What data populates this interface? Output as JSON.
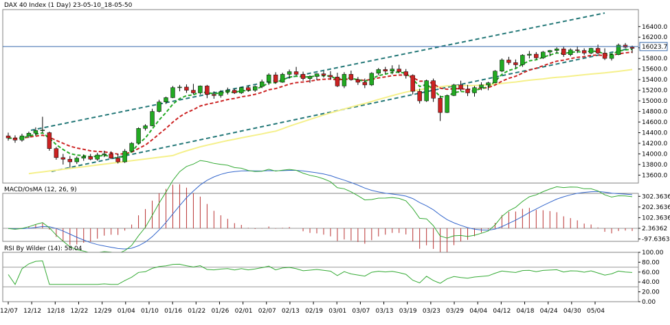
{
  "colors": {
    "bull": "#22aa22",
    "bear": "#cc2222",
    "wick": "#000000",
    "ema_fast": "#22aa22",
    "ema_mid": "#cc2222",
    "sma_slow": "#f5f08a",
    "channel": "#227777",
    "hline": "#3366aa",
    "macd_main": "#33aa33",
    "macd_signal": "#3366cc",
    "osma": "#b83030",
    "rsi": "#33aa33",
    "border": "#808080",
    "gridlevel": "#999999"
  },
  "price_pane": {
    "title": "DAX 40 Index (1 Day) 23-05-10_18-05-50",
    "ylim": [
      13450,
      16720
    ],
    "yticks": [
      "16400.0",
      "16200.0",
      "16000.0",
      "15800.0",
      "15600.0",
      "15400.0",
      "15200.0",
      "15000.0",
      "14800.0",
      "14600.0",
      "14400.0",
      "14200.0",
      "14000.0",
      "13800.0",
      "13600.0"
    ],
    "hline_value": 16023.7,
    "hline_label": "16023.7"
  },
  "macd_pane": {
    "title": "MACD/OsMA (12, 26, 9)",
    "ylim": [
      -120,
      330
    ],
    "yticks": [
      "302.36362",
      "202.36362",
      "102.36362",
      "2.36362",
      "-97.63638"
    ]
  },
  "rsi_pane": {
    "title": "RSI By Wilder (14): 58.04",
    "ylim": [
      0,
      100
    ],
    "yticks": [
      "100.00",
      "80.00",
      "60.00",
      "40.00",
      "20.00",
      "0.00"
    ],
    "levels": [
      70,
      30
    ]
  },
  "x_labels": [
    "12/07",
    "12/12",
    "12/18",
    "12/22",
    "12/29",
    "01/04",
    "01/10",
    "01/16",
    "01/22",
    "01/26",
    "02/01",
    "02/07",
    "02/13",
    "02/19",
    "03/01",
    "03/07",
    "03/13",
    "03/19",
    "03/23",
    "03/29",
    "04/04",
    "04/12",
    "04/18",
    "04/24",
    "04/30",
    "05/04"
  ],
  "chart_data": {
    "type": "candlestick",
    "title": "DAX 40 Index (1 Day) 23-05-10_18-05-50",
    "ohlc": [
      [
        14340,
        14400,
        14250,
        14300
      ],
      [
        14300,
        14350,
        14210,
        14260
      ],
      [
        14260,
        14380,
        14230,
        14340
      ],
      [
        14340,
        14420,
        14300,
        14390
      ],
      [
        14390,
        14500,
        14340,
        14440
      ],
      [
        14440,
        14700,
        14400,
        14450
      ],
      [
        14400,
        14420,
        14060,
        14100
      ],
      [
        14100,
        14130,
        13890,
        13930
      ],
      [
        13930,
        14000,
        13800,
        13900
      ],
      [
        13900,
        13960,
        13740,
        13850
      ],
      [
        13850,
        13950,
        13810,
        13920
      ],
      [
        13920,
        13990,
        13870,
        13950
      ],
      [
        13950,
        14000,
        13880,
        13900
      ],
      [
        13900,
        14020,
        13870,
        13980
      ],
      [
        13980,
        14060,
        13940,
        14000
      ],
      [
        14000,
        14050,
        13900,
        13920
      ],
      [
        13920,
        14000,
        13820,
        13850
      ],
      [
        13850,
        14090,
        13830,
        14050
      ],
      [
        14050,
        14220,
        14040,
        14200
      ],
      [
        14200,
        14500,
        14190,
        14480
      ],
      [
        14480,
        14560,
        14440,
        14530
      ],
      [
        14530,
        14850,
        14520,
        14800
      ],
      [
        14800,
        15020,
        14780,
        14980
      ],
      [
        14980,
        15080,
        14940,
        15060
      ],
      [
        15060,
        15280,
        15050,
        15250
      ],
      [
        15250,
        15300,
        15180,
        15260
      ],
      [
        15260,
        15310,
        15150,
        15200
      ],
      [
        15200,
        15320,
        15120,
        15150
      ],
      [
        15150,
        15290,
        15120,
        15280
      ],
      [
        15280,
        15300,
        15050,
        15120
      ],
      [
        15120,
        15180,
        15040,
        15100
      ],
      [
        15100,
        15200,
        15060,
        15170
      ],
      [
        15170,
        15250,
        15120,
        15200
      ],
      [
        15200,
        15230,
        15130,
        15150
      ],
      [
        15150,
        15260,
        15130,
        15250
      ],
      [
        15250,
        15290,
        15170,
        15200
      ],
      [
        15200,
        15290,
        15170,
        15270
      ],
      [
        15270,
        15400,
        15240,
        15360
      ],
      [
        15360,
        15520,
        15300,
        15490
      ],
      [
        15490,
        15540,
        15320,
        15350
      ],
      [
        15350,
        15530,
        15340,
        15500
      ],
      [
        15500,
        15590,
        15420,
        15550
      ],
      [
        15550,
        15640,
        15480,
        15500
      ],
      [
        15500,
        15550,
        15380,
        15420
      ],
      [
        15420,
        15480,
        15340,
        15460
      ],
      [
        15460,
        15520,
        15390,
        15510
      ],
      [
        15510,
        15560,
        15440,
        15480
      ],
      [
        15480,
        15560,
        15400,
        15450
      ],
      [
        15450,
        15530,
        15260,
        15280
      ],
      [
        15280,
        15540,
        15240,
        15500
      ],
      [
        15500,
        15570,
        15380,
        15400
      ],
      [
        15400,
        15450,
        15300,
        15350
      ],
      [
        15350,
        15420,
        15240,
        15300
      ],
      [
        15300,
        15540,
        15280,
        15520
      ],
      [
        15520,
        15620,
        15480,
        15590
      ],
      [
        15590,
        15640,
        15510,
        15560
      ],
      [
        15560,
        15670,
        15500,
        15600
      ],
      [
        15600,
        15680,
        15520,
        15550
      ],
      [
        15550,
        15600,
        15420,
        15480
      ],
      [
        15480,
        15500,
        15120,
        15180
      ],
      [
        15180,
        15230,
        14950,
        15000
      ],
      [
        15000,
        15400,
        14980,
        15380
      ],
      [
        15380,
        15420,
        14980,
        15050
      ],
      [
        15050,
        15100,
        14620,
        14780
      ],
      [
        14780,
        15120,
        14770,
        15100
      ],
      [
        15100,
        15320,
        15090,
        15300
      ],
      [
        15300,
        15380,
        15180,
        15220
      ],
      [
        15220,
        15300,
        15090,
        15150
      ],
      [
        15150,
        15280,
        15080,
        15250
      ],
      [
        15250,
        15350,
        15200,
        15300
      ],
      [
        15300,
        15360,
        15200,
        15340
      ],
      [
        15340,
        15580,
        15330,
        15560
      ],
      [
        15560,
        15800,
        15540,
        15770
      ],
      [
        15770,
        15830,
        15680,
        15720
      ],
      [
        15720,
        15780,
        15620,
        15680
      ],
      [
        15680,
        15880,
        15640,
        15860
      ],
      [
        15860,
        15940,
        15800,
        15880
      ],
      [
        15880,
        15920,
        15780,
        15810
      ],
      [
        15810,
        15940,
        15790,
        15920
      ],
      [
        15920,
        15960,
        15840,
        15950
      ],
      [
        15950,
        16010,
        15900,
        15980
      ],
      [
        15980,
        16020,
        15830,
        15870
      ],
      [
        15870,
        15990,
        15840,
        15960
      ],
      [
        15960,
        16030,
        15900,
        15950
      ],
      [
        15950,
        15990,
        15860,
        15900
      ],
      [
        15900,
        16000,
        15880,
        15990
      ],
      [
        15990,
        16060,
        15880,
        15900
      ],
      [
        15900,
        15990,
        15770,
        15800
      ],
      [
        15800,
        15890,
        15760,
        15870
      ],
      [
        15870,
        16080,
        15860,
        16050
      ],
      [
        16050,
        16090,
        15990,
        16010
      ],
      [
        16010,
        16040,
        15900,
        15990
      ]
    ],
    "hline": 16023.7,
    "ylim": [
      13450,
      16720
    ]
  }
}
